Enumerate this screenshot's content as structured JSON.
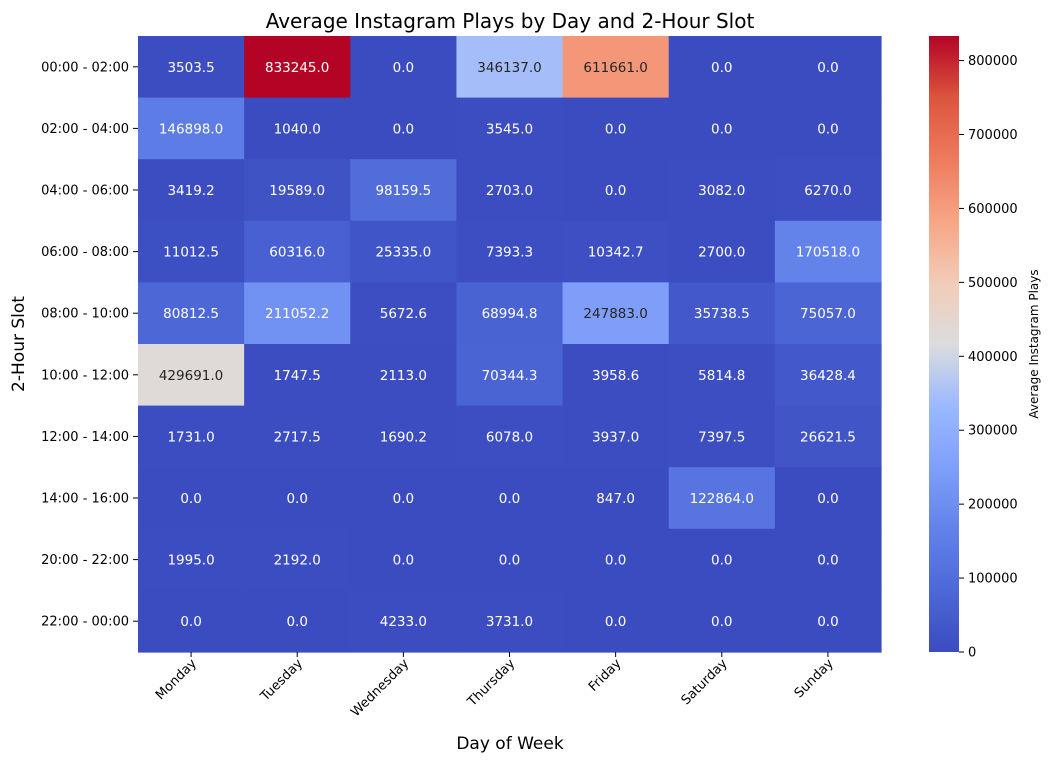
{
  "chart_data": {
    "type": "heatmap",
    "title": "Average Instagram Plays by Day and 2-Hour Slot",
    "xlabel": "Day of Week",
    "ylabel": "2-Hour Slot",
    "colorbar_label": "Average Instagram Plays",
    "colormap": "coolwarm",
    "colorbar_range": [
      0,
      833245.0
    ],
    "colorbar_ticks": [
      0,
      100000,
      200000,
      300000,
      400000,
      500000,
      600000,
      700000,
      800000
    ],
    "colorbar_tick_labels": [
      "0",
      "100000",
      "200000",
      "300000",
      "400000",
      "500000",
      "600000",
      "700000",
      "800000"
    ],
    "x_categories": [
      "Monday",
      "Tuesday",
      "Wednesday",
      "Thursday",
      "Friday",
      "Saturday",
      "Sunday"
    ],
    "y_categories": [
      "00:00 - 02:00",
      "02:00 - 04:00",
      "04:00 - 06:00",
      "06:00 - 08:00",
      "08:00 - 10:00",
      "10:00 - 12:00",
      "12:00 - 14:00",
      "14:00 - 16:00",
      "20:00 - 22:00",
      "22:00 - 00:00"
    ],
    "values": [
      [
        3503.5,
        833245.0,
        0.0,
        346137.0,
        611661.0,
        0.0,
        0.0
      ],
      [
        146898.0,
        1040.0,
        0.0,
        3545.0,
        0.0,
        0.0,
        0.0
      ],
      [
        3419.2,
        19589.0,
        98159.5,
        2703.0,
        0.0,
        3082.0,
        6270.0
      ],
      [
        11012.5,
        60316.0,
        25335.0,
        7393.3,
        10342.7,
        2700.0,
        170518.0
      ],
      [
        80812.5,
        211052.2,
        5672.6,
        68994.8,
        247883.0,
        35738.5,
        75057.0
      ],
      [
        429691.0,
        1747.5,
        2113.0,
        70344.3,
        3958.6,
        5814.8,
        36428.4
      ],
      [
        1731.0,
        2717.5,
        1690.2,
        6078.0,
        3937.0,
        7397.5,
        26621.5
      ],
      [
        0.0,
        0.0,
        0.0,
        0.0,
        847.0,
        122864.0,
        0.0
      ],
      [
        1995.0,
        2192.0,
        0.0,
        0.0,
        0.0,
        0.0,
        0.0
      ],
      [
        0.0,
        0.0,
        4233.0,
        3731.0,
        0.0,
        0.0,
        0.0
      ]
    ],
    "value_labels": [
      [
        "3503.5",
        "833245.0",
        "0.0",
        "346137.0",
        "611661.0",
        "0.0",
        "0.0"
      ],
      [
        "146898.0",
        "1040.0",
        "0.0",
        "3545.0",
        "0.0",
        "0.0",
        "0.0"
      ],
      [
        "3419.2",
        "19589.0",
        "98159.5",
        "2703.0",
        "0.0",
        "3082.0",
        "6270.0"
      ],
      [
        "11012.5",
        "60316.0",
        "25335.0",
        "7393.3",
        "10342.7",
        "2700.0",
        "170518.0"
      ],
      [
        "80812.5",
        "211052.2",
        "5672.6",
        "68994.8",
        "247883.0",
        "35738.5",
        "75057.0"
      ],
      [
        "429691.0",
        "1747.5",
        "2113.0",
        "70344.3",
        "3958.6",
        "5814.8",
        "36428.4"
      ],
      [
        "1731.0",
        "2717.5",
        "1690.2",
        "6078.0",
        "3937.0",
        "7397.5",
        "26621.5"
      ],
      [
        "0.0",
        "0.0",
        "0.0",
        "0.0",
        "847.0",
        "122864.0",
        "0.0"
      ],
      [
        "1995.0",
        "2192.0",
        "0.0",
        "0.0",
        "0.0",
        "0.0",
        "0.0"
      ],
      [
        "0.0",
        "0.0",
        "4233.0",
        "3731.0",
        "0.0",
        "0.0",
        "0.0"
      ]
    ]
  }
}
